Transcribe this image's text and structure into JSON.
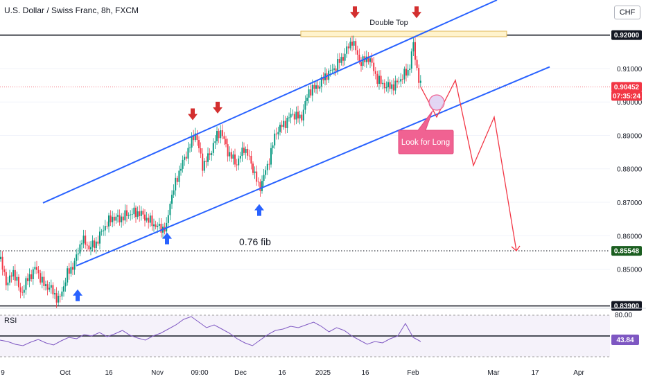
{
  "header": {
    "title": "U.S. Dollar / Swiss Franc, 8h, FXCM",
    "currency": "CHF"
  },
  "colors": {
    "up": "#089981",
    "down": "#f23645",
    "channel": "#2962ff",
    "projection": "#f23645",
    "callout": "#f06292",
    "zone": "#fff3cd",
    "arrow_down": "#d32f2f",
    "arrow_up": "#2962ff"
  },
  "chart_data": {
    "type": "candlestick",
    "symbol": "USDCHF",
    "interval": "8h",
    "ylim": [
      0.8383,
      0.9305
    ],
    "yticks": [
      "0.91000",
      "0.90000",
      "0.89000",
      "0.88000",
      "0.87000",
      "0.86000",
      "0.85000"
    ],
    "xticks": [
      "9",
      "Oct",
      "16",
      "Nov",
      "09:00",
      "Dec",
      "16",
      "2025",
      "16",
      "Feb",
      "Mar",
      "17",
      "Apr"
    ],
    "price_labels": [
      {
        "text": "0.92000",
        "kind": "level",
        "value": 0.92
      },
      {
        "text": "0.90452",
        "kind": "last",
        "value": 0.90452
      },
      {
        "text": "07:35:24",
        "kind": "countdown"
      },
      {
        "text": "0.85548",
        "kind": "fib",
        "value": 0.85548
      },
      {
        "text": "0.83900",
        "kind": "level",
        "value": 0.839
      }
    ],
    "levels": [
      0.92,
      0.85548,
      0.839
    ],
    "close_path": [
      [
        0,
        0.853
      ],
      [
        10,
        0.8455
      ],
      [
        20,
        0.8495
      ],
      [
        30,
        0.8425
      ],
      [
        40,
        0.847
      ],
      [
        52,
        0.8505
      ],
      [
        62,
        0.8455
      ],
      [
        72,
        0.8445
      ],
      [
        85,
        0.8405
      ],
      [
        97,
        0.8485
      ],
      [
        108,
        0.852
      ],
      [
        118,
        0.859
      ],
      [
        128,
        0.8565
      ],
      [
        138,
        0.8575
      ],
      [
        150,
        0.8625
      ],
      [
        162,
        0.8655
      ],
      [
        172,
        0.865
      ],
      [
        185,
        0.8665
      ],
      [
        200,
        0.867
      ],
      [
        212,
        0.865
      ],
      [
        228,
        0.8625
      ],
      [
        240,
        0.862
      ],
      [
        245,
        0.87
      ],
      [
        258,
        0.879
      ],
      [
        272,
        0.886
      ],
      [
        282,
        0.891
      ],
      [
        292,
        0.881
      ],
      [
        302,
        0.884
      ],
      [
        312,
        0.8895
      ],
      [
        318,
        0.8915
      ],
      [
        330,
        0.8845
      ],
      [
        342,
        0.8815
      ],
      [
        352,
        0.8865
      ],
      [
        362,
        0.882
      ],
      [
        374,
        0.874
      ],
      [
        386,
        0.881
      ],
      [
        398,
        0.891
      ],
      [
        410,
        0.8935
      ],
      [
        422,
        0.8965
      ],
      [
        434,
        0.895
      ],
      [
        446,
        0.9035
      ],
      [
        458,
        0.9045
      ],
      [
        470,
        0.908
      ],
      [
        482,
        0.91
      ],
      [
        495,
        0.9135
      ],
      [
        508,
        0.9185
      ],
      [
        520,
        0.9115
      ],
      [
        532,
        0.9135
      ],
      [
        545,
        0.9065
      ],
      [
        558,
        0.9045
      ],
      [
        570,
        0.905
      ],
      [
        580,
        0.9075
      ],
      [
        590,
        0.9095
      ],
      [
        596,
        0.9175
      ],
      [
        603,
        0.908
      ],
      [
        607,
        0.9045
      ]
    ],
    "channel_upper": [
      [
        62,
        0.8698
      ],
      [
        717,
        0.9305
      ]
    ],
    "channel_lower": [
      [
        110,
        0.851
      ],
      [
        793,
        0.9105
      ]
    ],
    "projection_path": [
      [
        607,
        0.9045
      ],
      [
        630,
        0.8955
      ],
      [
        657,
        0.9065
      ],
      [
        683,
        0.881
      ],
      [
        713,
        0.8955
      ],
      [
        745,
        0.8555
      ]
    ],
    "annotations": [
      {
        "text": "Double Top",
        "value": 0.9237
      },
      {
        "text": "0.76 fib",
        "value": 0.8525
      },
      {
        "text": "Look for Long",
        "value": 0.881
      }
    ],
    "arrows_down": [
      0.9265,
      0.9265,
      0.896,
      0.898
    ],
    "arrows_up": [
      0.8425,
      0.8595,
      0.868
    ]
  },
  "rsi": {
    "label": "RSI",
    "levels": [
      "80.00",
      "43.84"
    ],
    "values": [
      44,
      42,
      38,
      36,
      41,
      45,
      40,
      37,
      43,
      48,
      46,
      52,
      50,
      55,
      49,
      53,
      58,
      51,
      47,
      44,
      50,
      54,
      60,
      66,
      74,
      78,
      70,
      62,
      66,
      60,
      54,
      46,
      40,
      36,
      44,
      52,
      58,
      60,
      64,
      62,
      66,
      70,
      64,
      56,
      62,
      58,
      50,
      44,
      38,
      42,
      40,
      46,
      50,
      68,
      48,
      42
    ]
  }
}
